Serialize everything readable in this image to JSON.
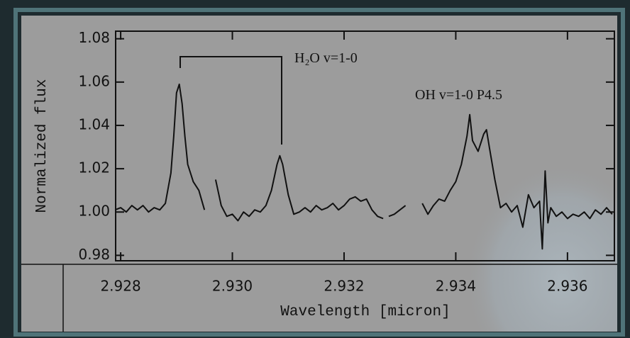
{
  "chart_data": {
    "type": "line",
    "x_label": "Wavelength [micron]",
    "y_label": "Normalized flux",
    "annotations": [
      "H₂O v=1-0",
      "OH v=1-0 P4.5"
    ],
    "x": [
      2.9279,
      2.928,
      2.9281,
      2.9282,
      2.9283,
      2.9284,
      2.9285,
      2.9286,
      2.9287,
      2.9288,
      2.9289,
      2.92895,
      2.929,
      2.92905,
      2.9291,
      2.92915,
      2.9292,
      2.9293,
      2.9294,
      2.9295,
      2.9296,
      2.9297,
      2.9298,
      2.9299,
      2.93,
      2.9301,
      2.9302,
      2.9303,
      2.9304,
      2.9305,
      2.9306,
      2.9307,
      2.9308,
      2.93085,
      2.9309,
      2.931,
      2.9311,
      2.9312,
      2.9313,
      2.9314,
      2.9315,
      2.9316,
      2.9317,
      2.9318,
      2.9319,
      2.932,
      2.9321,
      2.9322,
      2.9323,
      2.9324,
      2.9325,
      2.9326,
      2.9327,
      2.93275,
      2.9328,
      2.9329,
      2.933,
      2.9331,
      2.9332,
      2.9334,
      2.9335,
      2.9336,
      2.9337,
      2.9338,
      2.9339,
      2.934,
      2.9341,
      2.9342,
      2.93425,
      2.9343,
      2.9344,
      2.9345,
      2.93455,
      2.9346,
      2.9347,
      2.9348,
      2.9349,
      2.935,
      2.9351,
      2.9352,
      2.9353,
      2.9354,
      2.9355,
      2.93555,
      2.9356,
      2.93565,
      2.9357,
      2.9358,
      2.9359,
      2.936,
      2.9361,
      2.9362,
      2.9363,
      2.9364,
      2.9365,
      2.9366,
      2.9367,
      2.9368
    ],
    "series": [
      {
        "color": "#111111",
        "values": [
          1.001,
          1.002,
          1.0,
          1.003,
          1.001,
          1.003,
          1.0,
          1.002,
          1.001,
          1.004,
          1.018,
          1.035,
          1.055,
          1.059,
          1.05,
          1.035,
          1.022,
          1.014,
          1.01,
          1.001,
          null,
          1.015,
          1.003,
          0.998,
          0.999,
          0.996,
          1.0,
          0.998,
          1.001,
          1.0,
          1.003,
          1.01,
          1.022,
          1.026,
          1.022,
          1.008,
          0.999,
          1.0,
          1.002,
          1.0,
          1.003,
          1.001,
          1.002,
          1.004,
          1.001,
          1.003,
          1.006,
          1.007,
          1.005,
          1.006,
          1.001,
          0.998,
          0.997,
          null,
          0.998,
          0.999,
          1.001,
          1.003,
          null,
          1.004,
          0.999,
          1.003,
          1.006,
          1.005,
          1.01,
          1.014,
          1.022,
          1.035,
          1.045,
          1.033,
          1.028,
          1.036,
          1.038,
          1.03,
          1.015,
          1.002,
          1.004,
          1.0,
          1.003,
          0.993,
          1.008,
          1.002,
          1.005,
          0.983,
          1.019,
          0.995,
          1.002,
          0.998,
          1.0,
          0.997,
          0.999,
          0.998,
          1.0,
          0.997,
          1.001,
          0.999,
          1.002,
          0.999
        ]
      }
    ],
    "xlim": [
      2.92791,
      2.93684
    ],
    "ylim": [
      0.9775,
      1.0835
    ],
    "xticks": [
      2.928,
      {
        "value": 2.93,
        "label": "2.930"
      },
      2.932,
      2.934,
      2.936
    ],
    "yticks": [
      0.98,
      {
        "value": 1,
        "label": "1.00"
      },
      1.02,
      1.04,
      1.06,
      1.08
    ],
    "grid": false
  }
}
